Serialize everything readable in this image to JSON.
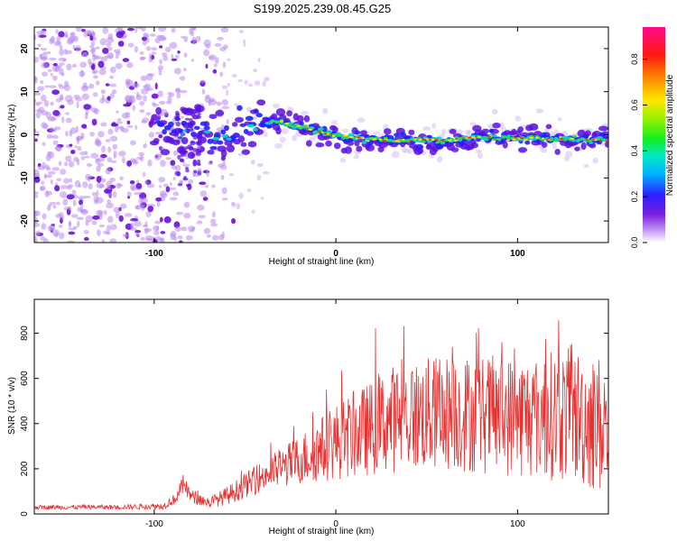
{
  "title": "S199.2025.239.08.45.G25",
  "chart_data": [
    {
      "type": "heatmap",
      "xlabel": "Height of straight line (km)",
      "ylabel": "Frequency (Hz)",
      "xlim": [
        -166,
        150
      ],
      "ylim": [
        -25,
        25
      ],
      "xticks": [
        -100,
        0,
        100
      ],
      "yticks": [
        -20,
        -10,
        0,
        10,
        20
      ],
      "colorbar": {
        "label": "Normalized spectral amplitude",
        "range": [
          0,
          0.94
        ],
        "ticks": [
          "0.0",
          "0.2",
          "0.4",
          "0.6",
          "0.8"
        ],
        "tick_values": [
          0.0,
          0.2,
          0.4,
          0.6,
          0.8
        ]
      },
      "ridge": {
        "x": [
          -95,
          -85,
          -75,
          -65,
          -55,
          -45,
          -38,
          -30,
          -20,
          -10,
          0,
          20,
          40,
          60,
          80,
          100,
          120,
          140,
          150
        ],
        "freq": [
          1.5,
          1.0,
          0.5,
          -1.0,
          0.5,
          2.0,
          3.0,
          3.0,
          1.8,
          0.8,
          -0.2,
          -1.0,
          -1.2,
          -1.3,
          -0.5,
          -0.8,
          -0.9,
          -1.2,
          -1.4
        ]
      }
    },
    {
      "type": "line",
      "xlabel": "Height of straight line (km)",
      "ylabel": "SNR (10 * v/v)",
      "xlim": [
        -166,
        150
      ],
      "ylim": [
        0,
        950
      ],
      "xticks": [
        -100,
        0,
        100
      ],
      "yticks": [
        0,
        200,
        400,
        600,
        800
      ],
      "color": "#e83030",
      "envelope": {
        "x": [
          -166,
          -120,
          -95,
          -88,
          -84,
          -80,
          -70,
          -60,
          -40,
          -20,
          0,
          20,
          30,
          60,
          100,
          130,
          150
        ],
        "mean": [
          30,
          30,
          35,
          70,
          130,
          80,
          50,
          80,
          170,
          240,
          320,
          380,
          420,
          450,
          430,
          440,
          380
        ],
        "spread": [
          10,
          10,
          15,
          25,
          45,
          30,
          25,
          40,
          70,
          110,
          170,
          210,
          240,
          260,
          270,
          300,
          320
        ]
      }
    }
  ]
}
